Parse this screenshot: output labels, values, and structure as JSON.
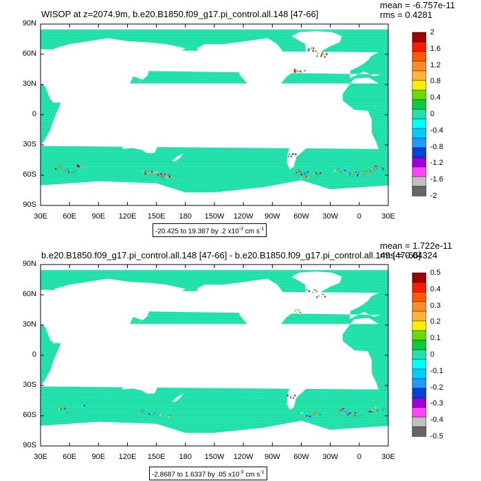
{
  "panels": [
    {
      "title": "WISOP at z=2074.9m, b.e20.B1850.f09_g17.pi_control.all.148 [47-66]",
      "mean": "mean = -6.757e-11",
      "rms": "rms = 0.4281",
      "range": {
        "prefix": "-20.425 to 19.387 by .2 x10",
        "exp": "-3",
        "unit": " cm s",
        "unit_exp": "-1"
      },
      "colorbar_labels": [
        "2",
        "1.6",
        "1.2",
        "0.8",
        "0.4",
        "0",
        "-0.4",
        "-0.8",
        "-1.2",
        "-1.6",
        "-2"
      ]
    },
    {
      "title": "b.e20.B1850.f09_g17.pi_control.all.148 [47-66] - b.e20.B1850.f09_g17.pi_control.all.149 [47-66]",
      "mean": "mean = 1.722e-11",
      "rms": "rms = 0.04324",
      "range": {
        "prefix": "-2.8687 to 1.6337 by .05 x10",
        "exp": "-3",
        "unit": " cm s",
        "unit_exp": "-1"
      },
      "colorbar_labels": [
        "0.5",
        "0.4",
        "0.3",
        "0.2",
        "0.1",
        "0",
        "-0.1",
        "-0.2",
        "-0.3",
        "-0.4",
        "-0.5"
      ]
    }
  ],
  "lat_labels": [
    "90N",
    "60N",
    "30N",
    "0",
    "30S",
    "60S",
    "90S"
  ],
  "lon_labels": [
    "30E",
    "60E",
    "90E",
    "120E",
    "150E",
    "180",
    "150W",
    "120W",
    "90W",
    "60W",
    "30W",
    "0",
    "30E"
  ],
  "colors": {
    "ocean": "#22e0a4",
    "ocean_alt": "#28e6c8",
    "land": "#ffffff",
    "colorbar": [
      "#a00000",
      "#ff1a00",
      "#ff5a00",
      "#ff8a2a",
      "#ffb43c",
      "#ffee00",
      "#66dd00",
      "#10c840",
      "#22e0b0",
      "#00ffff",
      "#00ccff",
      "#2299ff",
      "#0044dd",
      "#9900dd",
      "#ff44ff",
      "#c0c0c0",
      "#666666"
    ]
  }
}
